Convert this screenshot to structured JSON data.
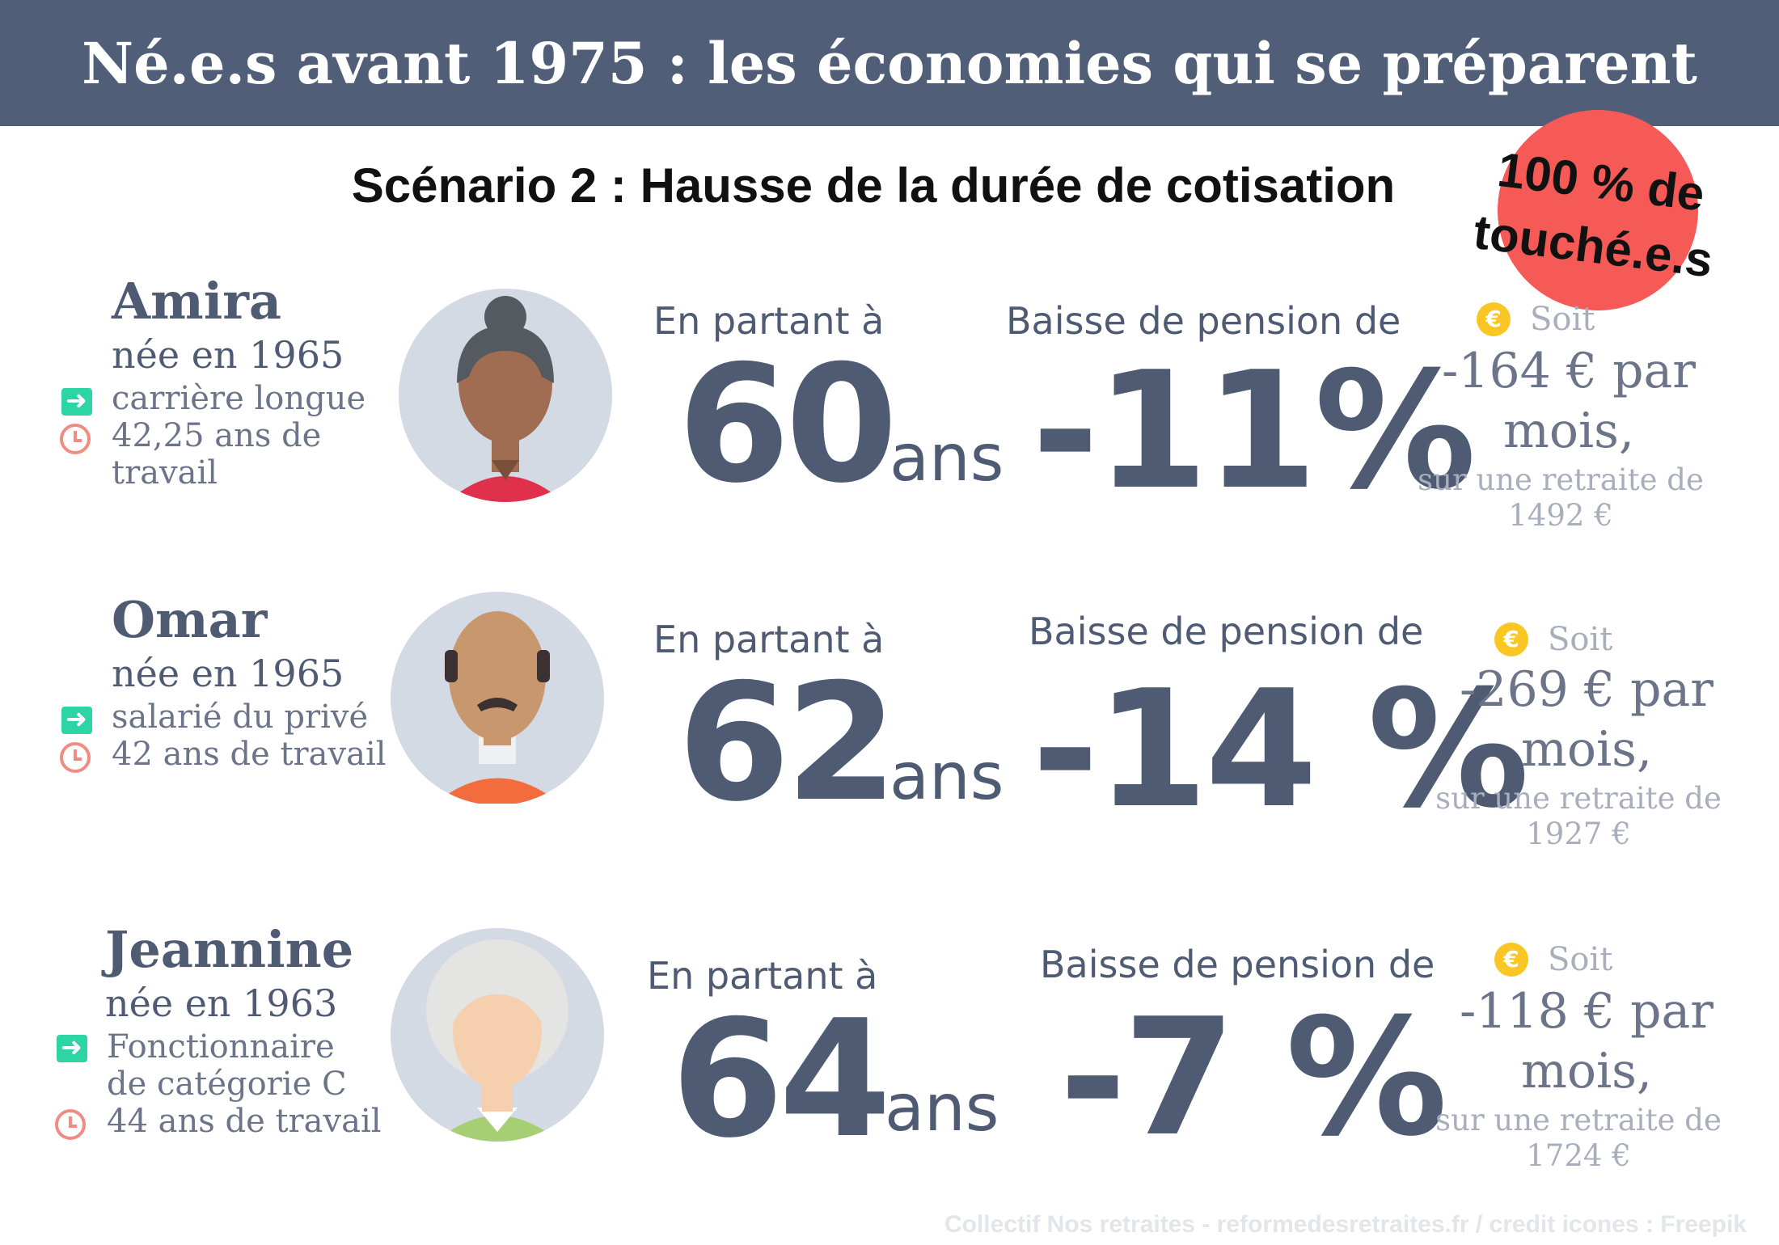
{
  "header": {
    "title": "Né.e.s avant 1975 : les économies qui se préparent"
  },
  "subtitle": "Scénario 2 : Hausse de la durée de cotisation",
  "badge": {
    "text_line1": "100 % de",
    "text_line2": "touché.e.s",
    "color": "#f55a57"
  },
  "colors": {
    "bar": "#505e78",
    "accent_text": "#4f5b73",
    "arrow_icon": "#2dd4a4",
    "clock_icon": "#f28b82",
    "euro_icon": "#f9c623"
  },
  "people": [
    {
      "name": "Amira",
      "born": "née en 1965",
      "detail_line1": "carrière longue",
      "detail_line2": "42,25 ans de",
      "detail_line3": "travail",
      "leaving_label": "En partant à",
      "age": "60",
      "age_unit": "ans",
      "drop_label": "Baisse de pension de",
      "drop": "-11%",
      "soit_label": "Soit",
      "amount_line1": "-164 € par",
      "amount_line2": "mois,",
      "base_line1": "sur une retraite de",
      "base_line2": "1492 €",
      "avatar": "woman-bun-icon"
    },
    {
      "name": "Omar",
      "born": "née en 1965",
      "detail_line1": "salarié du privé",
      "detail_line2": "42 ans de travail",
      "leaving_label": "En partant à",
      "age": "62",
      "age_unit": "ans",
      "drop_label": "Baisse de pension de",
      "drop": "-14 %",
      "soit_label": "Soit",
      "amount_line1": "-269 € par",
      "amount_line2": "mois,",
      "base_line1": "sur une retraite de",
      "base_line2": "1927 €",
      "avatar": "bald-man-icon"
    },
    {
      "name": "Jeannine",
      "born": "née en 1963",
      "detail_line1": "Fonctionnaire",
      "detail_line2": "de catégorie C",
      "detail_line3": "44 ans de travail",
      "leaving_label": "En partant à",
      "age": "64",
      "age_unit": "ans",
      "drop_label": "Baisse de pension de",
      "drop": "-7 %",
      "soit_label": "Soit",
      "amount_line1": "-118 € par",
      "amount_line2": "mois,",
      "base_line1": "sur une retraite de",
      "base_line2": "1724 €",
      "avatar": "older-woman-icon"
    }
  ],
  "footer": "Collectif Nos retraites - reformedesretraites.fr  / credit icones : Freepik"
}
